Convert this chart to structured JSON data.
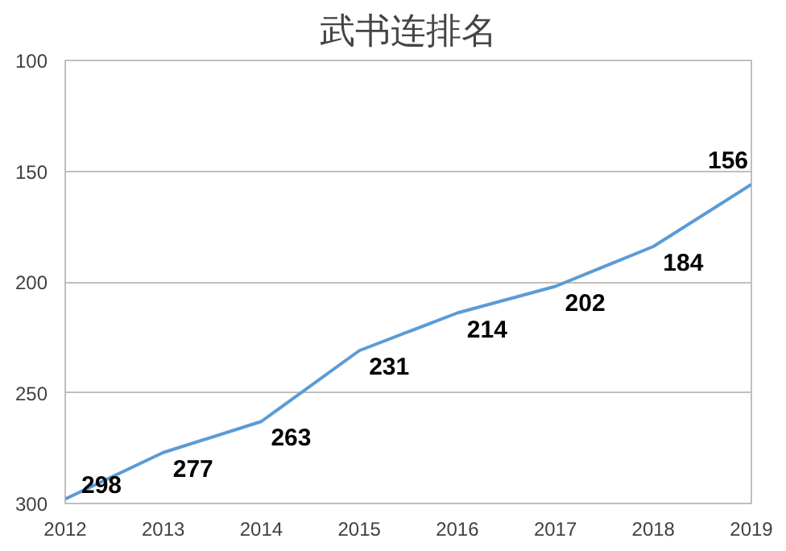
{
  "chart_data": {
    "type": "line",
    "title": "武书连排名",
    "x": [
      2012,
      2013,
      2014,
      2015,
      2016,
      2017,
      2018,
      2019
    ],
    "series": [
      {
        "color": "#5b9bd5",
        "values": [
          298,
          277,
          263,
          231,
          214,
          202,
          184,
          156
        ]
      }
    ],
    "xlim": [
      2012,
      2019
    ],
    "xticks": [
      2012,
      2013,
      2014,
      2015,
      2016,
      2017,
      2018,
      2019
    ],
    "ylim": [
      300,
      100
    ],
    "yticks": [
      100,
      150,
      200,
      250,
      300
    ],
    "grid": "y",
    "data_labels": true,
    "marker": "none",
    "line_style": "solid"
  }
}
